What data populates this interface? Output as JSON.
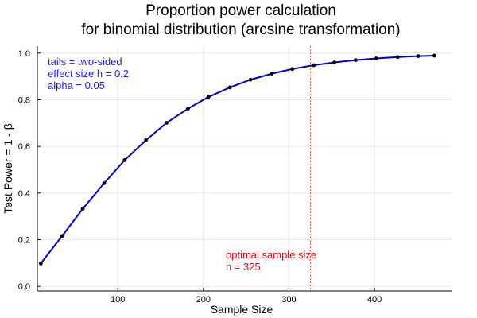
{
  "chart_data": {
    "type": "line",
    "title_lines": [
      "Proportion power calculation",
      "for binomial distribution (arcsine transformation)"
    ],
    "xlabel": "Sample Size",
    "ylabel": "Test Power = 1 - β",
    "xlim": [
      6,
      490
    ],
    "ylim": [
      -0.02,
      1.03
    ],
    "x_ticks": [
      100,
      200,
      300,
      400
    ],
    "y_ticks": [
      0.0,
      0.2,
      0.4,
      0.6,
      0.8,
      1.0
    ],
    "x_tick_labels": [
      "100",
      "200",
      "300",
      "400"
    ],
    "y_tick_labels": [
      "0.0",
      "0.2",
      "0.4",
      "0.6",
      "0.8",
      "1.0"
    ],
    "grid": true,
    "series": [
      {
        "color": "#0000cd",
        "marker_color": "#000000",
        "x": [
          10,
          35,
          59,
          84,
          108,
          133,
          157,
          182,
          206,
          231,
          255,
          280,
          304,
          329,
          353,
          378,
          402,
          427,
          451,
          470
        ],
        "y": [
          0.098,
          0.216,
          0.332,
          0.442,
          0.541,
          0.627,
          0.701,
          0.762,
          0.812,
          0.853,
          0.886,
          0.912,
          0.932,
          0.948,
          0.96,
          0.97,
          0.977,
          0.983,
          0.987,
          0.989
        ]
      }
    ],
    "optimal_line": {
      "x": 325,
      "color": "#ff4040"
    },
    "annotations": {
      "params": [
        "tails = two-sided",
        "effect size h = 0.2",
        "alpha = 0.05"
      ],
      "optimal": [
        "optimal sample size",
        "n = 325"
      ]
    }
  }
}
